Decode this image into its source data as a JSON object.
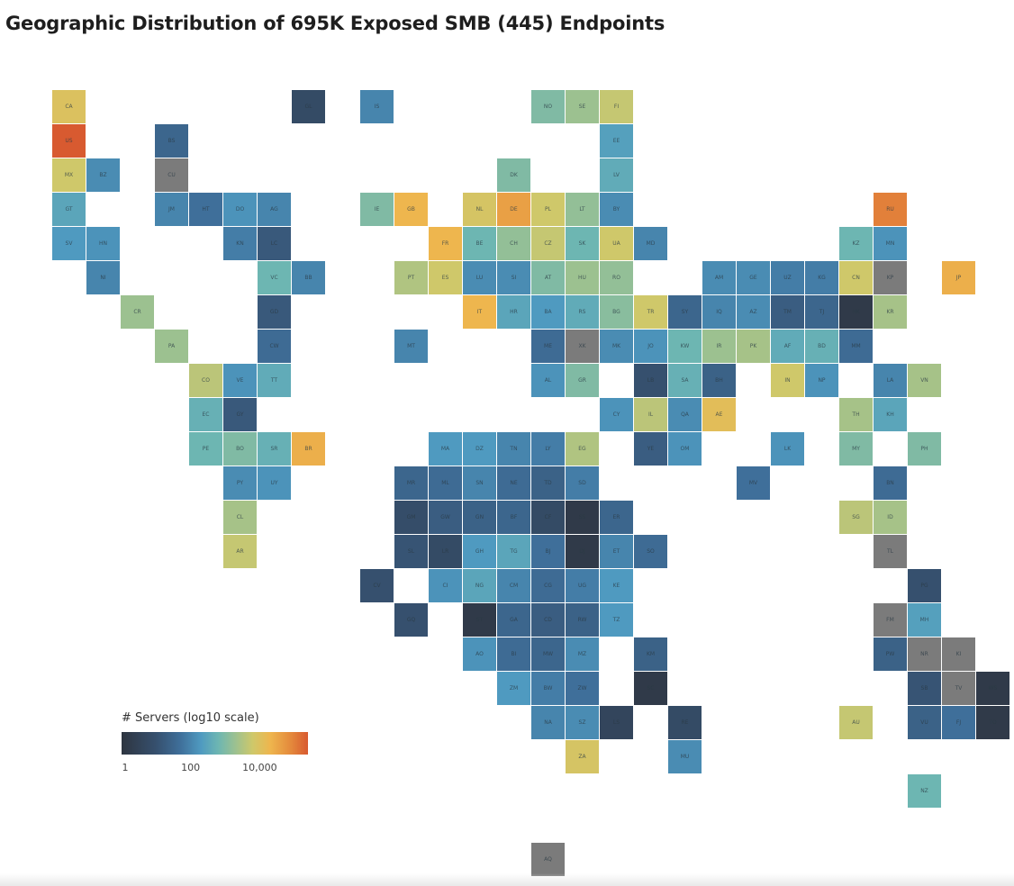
{
  "title": "Geographic Distribution of 695K Exposed SMB (445) Endpoints",
  "chart_data": {
    "type": "heatmap",
    "subtype": "tile-grid-map",
    "title": "Geographic Distribution of 695K Exposed SMB (445) Endpoints",
    "legend": {
      "title": "# Servers (log10 scale)",
      "ticks": [
        {
          "value": 0,
          "label": "1"
        },
        {
          "value": 2,
          "label": "100"
        },
        {
          "value": 4,
          "label": "10,000"
        }
      ],
      "range_log10": [
        0,
        5.4
      ],
      "colors": [
        "#2e3540",
        "#36506e",
        "#3f6f9a",
        "#4f9ac0",
        "#6db6b2",
        "#9cc190",
        "#cfc86a",
        "#eeb64e",
        "#e48a3c",
        "#d85a30"
      ],
      "no_data_color": "#7b7b7b",
      "placement": "bottom-left"
    },
    "tiles": [
      {
        "code": "CA",
        "log10_servers": 4.0
      },
      {
        "code": "US",
        "log10_servers": 5.4
      },
      {
        "code": "MX",
        "log10_servers": 3.8
      },
      {
        "code": "BZ",
        "log10_servers": 2.1
      },
      {
        "code": "GT",
        "log10_servers": 2.5
      },
      {
        "code": "SV",
        "log10_servers": 2.3
      },
      {
        "code": "HN",
        "log10_servers": 2.2
      },
      {
        "code": "NI",
        "log10_servers": 2.0
      },
      {
        "code": "CR",
        "log10_servers": 3.3
      },
      {
        "code": "PA",
        "log10_servers": 3.3
      },
      {
        "code": "BS",
        "log10_servers": 1.5
      },
      {
        "code": "CU",
        "log10_servers": null
      },
      {
        "code": "JM",
        "log10_servers": 2.0
      },
      {
        "code": "HT",
        "log10_servers": 1.7
      },
      {
        "code": "DO",
        "log10_servers": 2.2
      },
      {
        "code": "AG",
        "log10_servers": 2.0
      },
      {
        "code": "KN",
        "log10_servers": 1.9
      },
      {
        "code": "LC",
        "log10_servers": 1.2
      },
      {
        "code": "VC",
        "log10_servers": 2.8
      },
      {
        "code": "BB",
        "log10_servers": 2.0
      },
      {
        "code": "GL",
        "log10_servers": 0.8
      },
      {
        "code": "GD",
        "log10_servers": 1.2
      },
      {
        "code": "CW",
        "log10_servers": 1.6
      },
      {
        "code": "CO",
        "log10_servers": 3.6
      },
      {
        "code": "VE",
        "log10_servers": 2.2
      },
      {
        "code": "TT",
        "log10_servers": 2.6
      },
      {
        "code": "EC",
        "log10_servers": 2.7
      },
      {
        "code": "GY",
        "log10_servers": 1.2
      },
      {
        "code": "PE",
        "log10_servers": 2.8
      },
      {
        "code": "BO",
        "log10_servers": 3.0
      },
      {
        "code": "SR",
        "log10_servers": 2.7
      },
      {
        "code": "BR",
        "log10_servers": 4.4
      },
      {
        "code": "PY",
        "log10_servers": 2.1
      },
      {
        "code": "UY",
        "log10_servers": 2.2
      },
      {
        "code": "CL",
        "log10_servers": 3.4
      },
      {
        "code": "AR",
        "log10_servers": 3.7
      },
      {
        "code": "IS",
        "log10_servers": 2.0
      },
      {
        "code": "NO",
        "log10_servers": 3.0
      },
      {
        "code": "SE",
        "log10_servers": 3.3
      },
      {
        "code": "FI",
        "log10_servers": 3.7
      },
      {
        "code": "EE",
        "log10_servers": 2.4
      },
      {
        "code": "DK",
        "log10_servers": 3.0
      },
      {
        "code": "LV",
        "log10_servers": 2.6
      },
      {
        "code": "IE",
        "log10_servers": 3.0
      },
      {
        "code": "GB",
        "log10_servers": 4.3
      },
      {
        "code": "NL",
        "log10_servers": 3.9
      },
      {
        "code": "DE",
        "log10_servers": 4.6
      },
      {
        "code": "PL",
        "log10_servers": 3.8
      },
      {
        "code": "LT",
        "log10_servers": 3.2
      },
      {
        "code": "BY",
        "log10_servers": 2.1
      },
      {
        "code": "FR",
        "log10_servers": 4.3
      },
      {
        "code": "BE",
        "log10_servers": 2.8
      },
      {
        "code": "CH",
        "log10_servers": 3.2
      },
      {
        "code": "CZ",
        "log10_servers": 3.7
      },
      {
        "code": "SK",
        "log10_servers": 2.8
      },
      {
        "code": "UA",
        "log10_servers": 3.8
      },
      {
        "code": "MD",
        "log10_servers": 2.0
      },
      {
        "code": "PT",
        "log10_servers": 3.5
      },
      {
        "code": "ES",
        "log10_servers": 3.8
      },
      {
        "code": "LU",
        "log10_servers": 2.1
      },
      {
        "code": "SI",
        "log10_servers": 2.1
      },
      {
        "code": "AT",
        "log10_servers": 3.0
      },
      {
        "code": "HU",
        "log10_servers": 3.3
      },
      {
        "code": "RO",
        "log10_servers": 3.2
      },
      {
        "code": "IT",
        "log10_servers": 4.3
      },
      {
        "code": "HR",
        "log10_servers": 2.5
      },
      {
        "code": "BA",
        "log10_servers": 2.3
      },
      {
        "code": "RS",
        "log10_servers": 2.6
      },
      {
        "code": "BG",
        "log10_servers": 3.1
      },
      {
        "code": "TR",
        "log10_servers": 3.8
      },
      {
        "code": "SY",
        "log10_servers": 1.5
      },
      {
        "code": "IQ",
        "log10_servers": 2.0
      },
      {
        "code": "AZ",
        "log10_servers": 2.1
      },
      {
        "code": "TM",
        "log10_servers": 1.3
      },
      {
        "code": "TJ",
        "log10_servers": 1.5
      },
      {
        "code": "HK",
        "log10_servers": 0.2
      },
      {
        "code": "KR",
        "log10_servers": 3.4
      },
      {
        "code": "RU",
        "log10_servers": 5.0
      },
      {
        "code": "KZ",
        "log10_servers": 2.8
      },
      {
        "code": "MN",
        "log10_servers": 2.2
      },
      {
        "code": "AM",
        "log10_servers": 2.1
      },
      {
        "code": "GE",
        "log10_servers": 2.1
      },
      {
        "code": "UZ",
        "log10_servers": 1.9
      },
      {
        "code": "KG",
        "log10_servers": 1.9
      },
      {
        "code": "CN",
        "log10_servers": 3.8
      },
      {
        "code": "KP",
        "log10_servers": null
      },
      {
        "code": "JP",
        "log10_servers": 4.4
      },
      {
        "code": "MT",
        "log10_servers": 2.0
      },
      {
        "code": "ME",
        "log10_servers": 1.6
      },
      {
        "code": "XK",
        "log10_servers": null
      },
      {
        "code": "MK",
        "log10_servers": 2.1
      },
      {
        "code": "JO",
        "log10_servers": 2.2
      },
      {
        "code": "KW",
        "log10_servers": 2.8
      },
      {
        "code": "IR",
        "log10_servers": 3.3
      },
      {
        "code": "PK",
        "log10_servers": 3.4
      },
      {
        "code": "AF",
        "log10_servers": 2.6
      },
      {
        "code": "BD",
        "log10_servers": 2.7
      },
      {
        "code": "MM",
        "log10_servers": 1.6
      },
      {
        "code": "AL",
        "log10_servers": 2.2
      },
      {
        "code": "GR",
        "log10_servers": 3.0
      },
      {
        "code": "LB",
        "log10_servers": 1.0
      },
      {
        "code": "SA",
        "log10_servers": 2.7
      },
      {
        "code": "BH",
        "log10_servers": 1.4
      },
      {
        "code": "IN",
        "log10_servers": 3.8
      },
      {
        "code": "NP",
        "log10_servers": 2.2
      },
      {
        "code": "LA",
        "log10_servers": 2.0
      },
      {
        "code": "VN",
        "log10_servers": 3.4
      },
      {
        "code": "CY",
        "log10_servers": 2.2
      },
      {
        "code": "IL",
        "log10_servers": 3.6
      },
      {
        "code": "QA",
        "log10_servers": 2.1
      },
      {
        "code": "AE",
        "log10_servers": 4.1
      },
      {
        "code": "TH",
        "log10_servers": 3.4
      },
      {
        "code": "KH",
        "log10_servers": 2.5
      },
      {
        "code": "MA",
        "log10_servers": 2.3
      },
      {
        "code": "DZ",
        "log10_servers": 2.3
      },
      {
        "code": "TN",
        "log10_servers": 2.0
      },
      {
        "code": "LY",
        "log10_servers": 1.9
      },
      {
        "code": "EG",
        "log10_servers": 3.5
      },
      {
        "code": "YE",
        "log10_servers": 1.3
      },
      {
        "code": "OM",
        "log10_servers": 2.2
      },
      {
        "code": "LK",
        "log10_servers": 2.2
      },
      {
        "code": "MY",
        "log10_servers": 3.0
      },
      {
        "code": "PH",
        "log10_servers": 3.0
      },
      {
        "code": "MR",
        "log10_servers": 1.5
      },
      {
        "code": "ML",
        "log10_servers": 1.6
      },
      {
        "code": "SN",
        "log10_servers": 2.0
      },
      {
        "code": "NE",
        "log10_servers": 1.6
      },
      {
        "code": "TD",
        "log10_servers": 1.4
      },
      {
        "code": "SD",
        "log10_servers": 1.9
      },
      {
        "code": "MV",
        "log10_servers": 1.7
      },
      {
        "code": "BN",
        "log10_servers": 1.6
      },
      {
        "code": "GM",
        "log10_servers": 0.9
      },
      {
        "code": "GW",
        "log10_servers": 1.3
      },
      {
        "code": "GN",
        "log10_servers": 1.4
      },
      {
        "code": "BF",
        "log10_servers": 1.5
      },
      {
        "code": "CF",
        "log10_servers": 0.8
      },
      {
        "code": "SS",
        "log10_servers": 0.2
      },
      {
        "code": "ER",
        "log10_servers": 1.5
      },
      {
        "code": "SG",
        "log10_servers": 3.6
      },
      {
        "code": "ID",
        "log10_servers": 3.4
      },
      {
        "code": "SL",
        "log10_servers": 1.1
      },
      {
        "code": "LR",
        "log10_servers": 0.8
      },
      {
        "code": "GH",
        "log10_servers": 2.3
      },
      {
        "code": "TG",
        "log10_servers": 2.5
      },
      {
        "code": "BJ",
        "log10_servers": 1.7
      },
      {
        "code": "DJ",
        "log10_servers": 0.2
      },
      {
        "code": "ET",
        "log10_servers": 2.0
      },
      {
        "code": "SO",
        "log10_servers": 1.6
      },
      {
        "code": "TL",
        "log10_servers": null
      },
      {
        "code": "CV",
        "log10_servers": 1.0
      },
      {
        "code": "CI",
        "log10_servers": 2.2
      },
      {
        "code": "NG",
        "log10_servers": 2.5
      },
      {
        "code": "CM",
        "log10_servers": 2.0
      },
      {
        "code": "CG",
        "log10_servers": 1.6
      },
      {
        "code": "UG",
        "log10_servers": 1.9
      },
      {
        "code": "KE",
        "log10_servers": 2.3
      },
      {
        "code": "PG",
        "log10_servers": 1.0
      },
      {
        "code": "GQ",
        "log10_servers": 1.0
      },
      {
        "code": "ST",
        "log10_servers": 0.2
      },
      {
        "code": "GA",
        "log10_servers": 1.5
      },
      {
        "code": "CD",
        "log10_servers": 1.3
      },
      {
        "code": "RW",
        "log10_servers": 1.4
      },
      {
        "code": "TZ",
        "log10_servers": 2.3
      },
      {
        "code": "FM",
        "log10_servers": null
      },
      {
        "code": "MH",
        "log10_servers": 2.4
      },
      {
        "code": "AO",
        "log10_servers": 2.2
      },
      {
        "code": "BI",
        "log10_servers": 1.6
      },
      {
        "code": "MW",
        "log10_servers": 1.5
      },
      {
        "code": "MZ",
        "log10_servers": 2.1
      },
      {
        "code": "KM",
        "log10_servers": 1.4
      },
      {
        "code": "PW",
        "log10_servers": 1.4
      },
      {
        "code": "NR",
        "log10_servers": null
      },
      {
        "code": "KI",
        "log10_servers": null
      },
      {
        "code": "ZM",
        "log10_servers": 2.3
      },
      {
        "code": "BW",
        "log10_servers": 1.9
      },
      {
        "code": "ZW",
        "log10_servers": 1.7
      },
      {
        "code": "SC",
        "log10_servers": 0.2
      },
      {
        "code": "SB",
        "log10_servers": 1.1
      },
      {
        "code": "TV",
        "log10_servers": null
      },
      {
        "code": "WS",
        "log10_servers": 0.2
      },
      {
        "code": "NA",
        "log10_servers": 2.0
      },
      {
        "code": "SZ",
        "log10_servers": 2.1
      },
      {
        "code": "LS",
        "log10_servers": 0.6
      },
      {
        "code": "RE",
        "log10_servers": 0.8
      },
      {
        "code": "AU",
        "log10_servers": 3.7
      },
      {
        "code": "VU",
        "log10_servers": 1.4
      },
      {
        "code": "FJ",
        "log10_servers": 1.7
      },
      {
        "code": "TO",
        "log10_servers": 0.2
      },
      {
        "code": "ZA",
        "log10_servers": 3.9
      },
      {
        "code": "MU",
        "log10_servers": 2.1
      },
      {
        "code": "NZ",
        "log10_servers": 2.8
      },
      {
        "code": "AQ",
        "log10_servers": null
      }
    ]
  }
}
